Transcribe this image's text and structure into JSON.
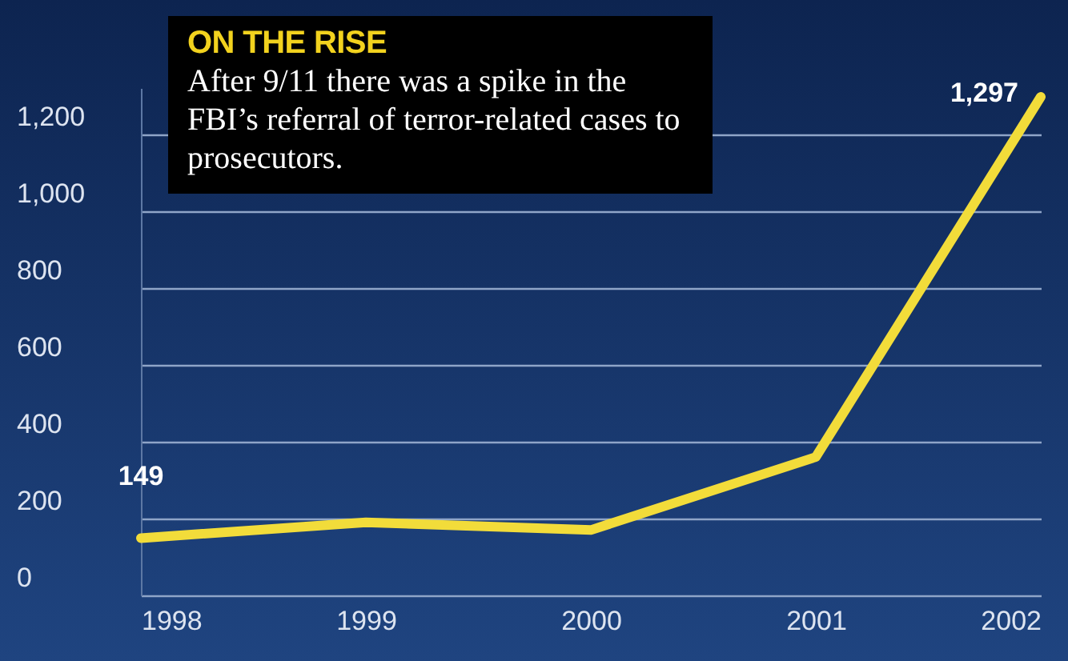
{
  "chart_data": {
    "type": "line",
    "title": "ON THE RISE",
    "subtitle": "After 9/11 there was a spike in the FBI’s referral of terror-related cases to prosecutors.",
    "x": [
      1998,
      1999,
      2000,
      2001,
      2002
    ],
    "series": [
      {
        "color": "#f2dc3a",
        "values": [
          149,
          190,
          170,
          360,
          1297
        ],
        "value_labels": [
          "149",
          null,
          null,
          null,
          "1,297"
        ]
      }
    ],
    "xlim": [
      1998,
      2002
    ],
    "xticks": [
      1998,
      1999,
      2000,
      2001,
      2002
    ],
    "ylim": [
      0,
      1320
    ],
    "yticks": [
      0,
      200,
      400,
      600,
      800,
      {
        "value": 1000,
        "label": "1,000"
      },
      {
        "value": 1200,
        "label": "1,200"
      }
    ],
    "grid": "y",
    "marker": "none",
    "line_style": "solid"
  }
}
